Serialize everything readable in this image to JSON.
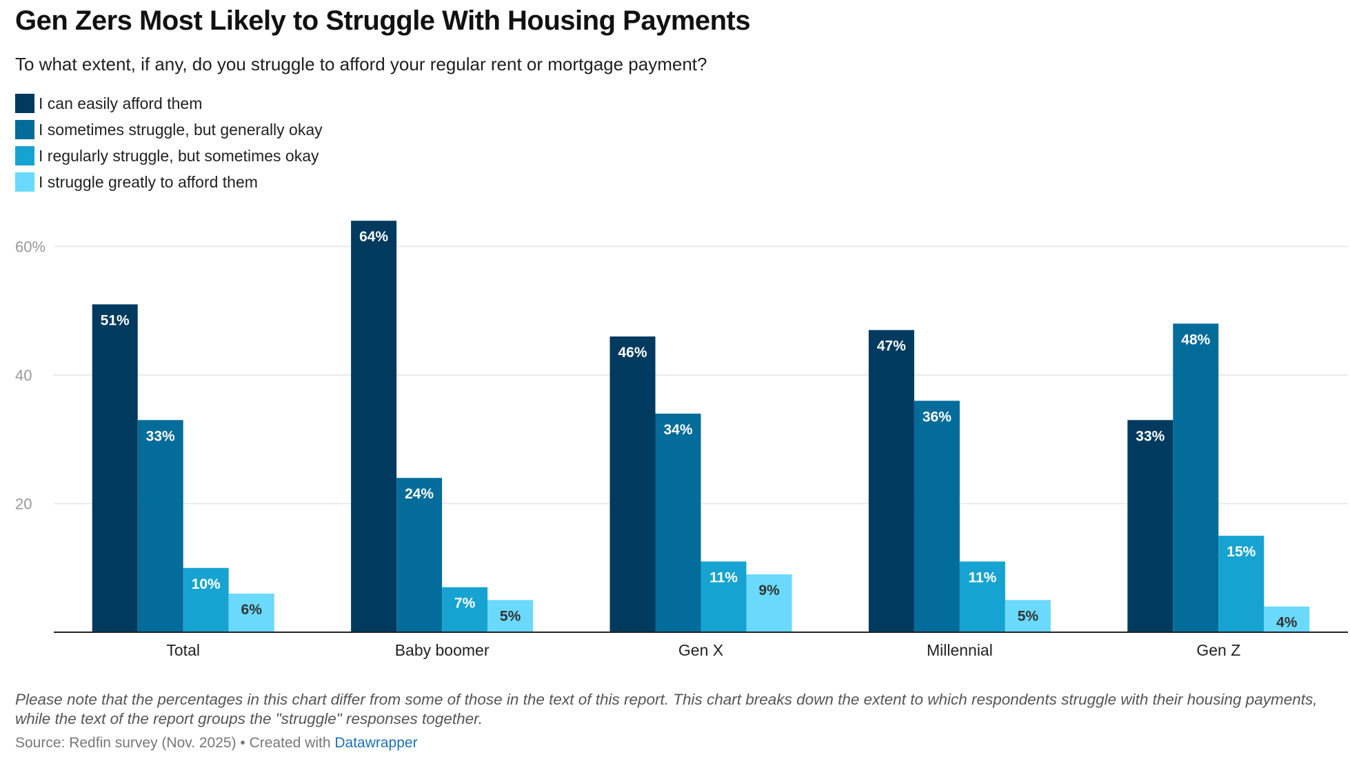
{
  "title": "Gen Zers Most Likely to Struggle With Housing Payments",
  "subtitle": "To what extent, if any, do you struggle to afford your regular rent or mortgage payment?",
  "legend": [
    {
      "label": "I can easily afford them",
      "color": "#003a5f"
    },
    {
      "label": "I sometimes struggle, but generally okay",
      "color": "#036c9a"
    },
    {
      "label": "I regularly struggle, but sometimes okay",
      "color": "#17a3d1"
    },
    {
      "label": "I struggle greatly to afford them",
      "color": "#6ad9fb"
    }
  ],
  "chart_data": {
    "type": "bar",
    "categories": [
      "Total",
      "Baby boomer",
      "Gen X",
      "Millennial",
      "Gen Z"
    ],
    "series": [
      {
        "name": "I can easily afford them",
        "values": [
          51,
          64,
          46,
          47,
          33
        ],
        "color": "#003a5f"
      },
      {
        "name": "I sometimes struggle, but generally okay",
        "values": [
          33,
          24,
          34,
          36,
          48
        ],
        "color": "#036c9a"
      },
      {
        "name": "I regularly struggle, but sometimes okay",
        "values": [
          10,
          7,
          11,
          11,
          15
        ],
        "color": "#17a3d1"
      },
      {
        "name": "I struggle greatly to afford them",
        "values": [
          6,
          5,
          9,
          5,
          4
        ],
        "color": "#6ad9fb"
      }
    ],
    "data_labels": [
      [
        "51%",
        "64%",
        "46%",
        "47%",
        "33%"
      ],
      [
        "33%",
        "24%",
        "34%",
        "36%",
        "48%"
      ],
      [
        "10%",
        "7%",
        "11%",
        "11%",
        "15%"
      ],
      [
        "6%",
        "5%",
        "9%",
        "5%",
        "4%"
      ]
    ],
    "yticks": [
      20,
      40,
      60
    ],
    "ytick_labels": [
      "20",
      "40",
      "60%"
    ],
    "ylim": [
      0,
      60
    ],
    "grid": true,
    "legend_position": "top-left"
  },
  "note": "Please note that the percentages in this chart differ from some of those in the text of this report. This chart breaks down the extent to which respondents struggle with their housing payments, while the text of the report groups the \"struggle\" responses together.",
  "source": {
    "prefix": "Source: Redfin survey (Nov. 2025) • Created with ",
    "link": "Datawrapper"
  }
}
